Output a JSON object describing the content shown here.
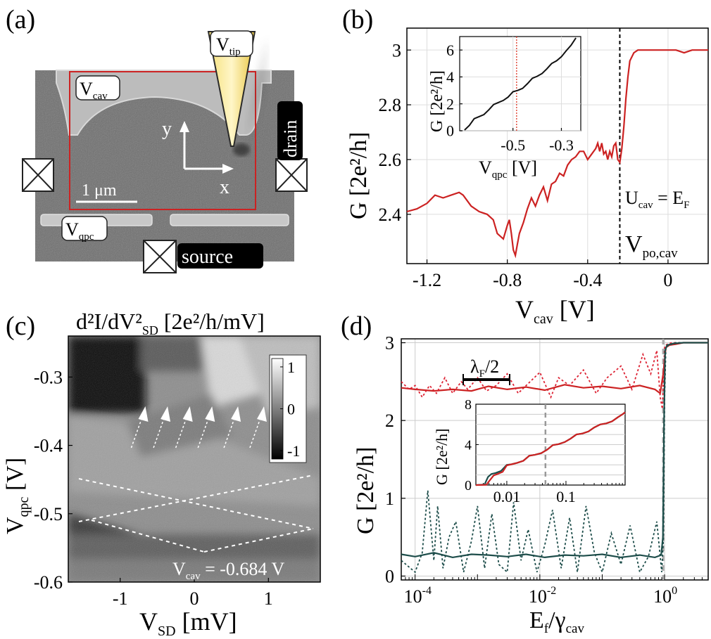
{
  "panels": {
    "a": {
      "label": "(a)",
      "gate_cav": "V",
      "gate_cav_sub": "cav",
      "gate_qpc": "V",
      "gate_qpc_sub": "qpc",
      "tip": "V",
      "tip_sub": "tip",
      "drain": "drain",
      "source": "source",
      "axis_x": "x",
      "axis_y": "y",
      "scale": "1 μm"
    },
    "c_extra": {
      "annotation_v": "V",
      "annotation_sub": "cav",
      "annotation_value": " = -0.684 V"
    },
    "b_extra": {
      "ucav": "U",
      "ucav_sub": "cav",
      "ucav_rhs": " = E",
      "ucav_rhs_sub": "F",
      "vpo": "V",
      "vpo_sub": "po,cav"
    },
    "d_extra": {
      "lambda": "λ",
      "lambda_sub": "F",
      "lambda_rest": "/2"
    }
  },
  "chart_data": [
    {
      "id": "b",
      "type": "line",
      "label": "(b)",
      "xlabel": "V",
      "xlabel_sub": "cav",
      "xlabel_unit": " [V]",
      "ylabel": "G [2e²/h]",
      "xlim": [
        -1.3,
        0.2
      ],
      "ylim": [
        2.22,
        3.08
      ],
      "xticks": [
        -1.2,
        -0.8,
        -0.4,
        0
      ],
      "xtick_labels": [
        "-1.2",
        "-0.8",
        "-0.4",
        "0"
      ],
      "yticks": [
        2.4,
        2.6,
        2.8,
        3.0
      ],
      "ytick_labels": [
        "2.4",
        "2.6",
        "2.8",
        "3"
      ],
      "grid": true,
      "marker_x": -0.24,
      "series": [
        {
          "color": "#cc2222",
          "x": [
            -1.3,
            -1.25,
            -1.2,
            -1.16,
            -1.12,
            -1.08,
            -1.04,
            -1.02,
            -0.98,
            -0.94,
            -0.9,
            -0.87,
            -0.85,
            -0.82,
            -0.8,
            -0.79,
            -0.78,
            -0.77,
            -0.76,
            -0.75,
            -0.74,
            -0.72,
            -0.7,
            -0.68,
            -0.66,
            -0.64,
            -0.62,
            -0.6,
            -0.58,
            -0.56,
            -0.54,
            -0.52,
            -0.5,
            -0.48,
            -0.46,
            -0.44,
            -0.42,
            -0.4,
            -0.38,
            -0.36,
            -0.35,
            -0.34,
            -0.33,
            -0.32,
            -0.31,
            -0.3,
            -0.29,
            -0.28,
            -0.27,
            -0.26,
            -0.25,
            -0.24,
            -0.23,
            -0.22,
            -0.21,
            -0.2,
            -0.19,
            -0.17,
            -0.15,
            -0.12,
            -0.08,
            -0.04,
            0,
            0.04,
            0.08,
            0.12,
            0.16,
            0.2
          ],
          "y": [
            2.41,
            2.42,
            2.44,
            2.47,
            2.46,
            2.47,
            2.48,
            2.47,
            2.43,
            2.41,
            2.4,
            2.38,
            2.33,
            2.31,
            2.36,
            2.38,
            2.33,
            2.27,
            2.25,
            2.29,
            2.33,
            2.37,
            2.42,
            2.46,
            2.43,
            2.47,
            2.5,
            2.45,
            2.51,
            2.52,
            2.55,
            2.54,
            2.58,
            2.6,
            2.61,
            2.63,
            2.63,
            2.6,
            2.62,
            2.64,
            2.66,
            2.63,
            2.66,
            2.62,
            2.63,
            2.6,
            2.63,
            2.61,
            2.65,
            2.66,
            2.6,
            2.59,
            2.64,
            2.72,
            2.82,
            2.9,
            2.96,
            2.99,
            3.0,
            3.0,
            3.0,
            3.0,
            3.0,
            3.0,
            2.99,
            3.0,
            3.0,
            3.0
          ]
        }
      ],
      "inset": {
        "xlabel": "V",
        "xlabel_sub": "qpc",
        "xlabel_unit": " [V]",
        "ylabel": "G [2e²/h]",
        "xlim": [
          -0.72,
          -0.22
        ],
        "ylim": [
          0,
          7
        ],
        "xticks": [
          -0.5,
          -0.3
        ],
        "xtick_labels": [
          "-0.5",
          "-0.3"
        ],
        "yticks": [
          0,
          2,
          4,
          6
        ],
        "ytick_labels": [
          "0",
          "2",
          "4",
          "6"
        ],
        "marker_x": -0.485,
        "series": [
          {
            "color": "#111111",
            "x": [
              -0.7,
              -0.68,
              -0.66,
              -0.64,
              -0.62,
              -0.6,
              -0.58,
              -0.56,
              -0.54,
              -0.52,
              -0.5,
              -0.48,
              -0.46,
              -0.44,
              -0.42,
              -0.4,
              -0.38,
              -0.36,
              -0.34,
              -0.32,
              -0.3,
              -0.28,
              -0.26,
              -0.24
            ],
            "y": [
              0.05,
              0.4,
              0.9,
              1.05,
              1.2,
              1.55,
              1.95,
              2.1,
              2.25,
              2.5,
              2.9,
              3.0,
              3.15,
              3.5,
              3.9,
              4.05,
              4.25,
              4.6,
              5.0,
              5.2,
              5.5,
              5.95,
              6.35,
              6.9
            ]
          }
        ]
      }
    },
    {
      "id": "c",
      "type": "heatmap",
      "label": "(c)",
      "title": "d²I/dV²",
      "title_sub": "SD",
      "title_unit": " [2e²/h/mV]",
      "xlabel": "V",
      "xlabel_sub": "SD",
      "xlabel_unit": " [mV]",
      "ylabel": "V",
      "ylabel_sub": "qpc",
      "ylabel_unit": " [V]",
      "xlim": [
        -1.7,
        1.7
      ],
      "ylim": [
        -0.6,
        -0.24
      ],
      "xticks": [
        -1,
        0,
        1
      ],
      "xtick_labels": [
        "-1",
        "0",
        "1"
      ],
      "yticks": [
        -0.3,
        -0.4,
        -0.5,
        -0.6
      ],
      "ytick_labels": [
        "-0.3",
        "-0.4",
        "-0.5",
        "-0.6"
      ],
      "colorbar": {
        "range": [
          -1.2,
          1.2
        ],
        "ticks": [
          1,
          0,
          -1
        ],
        "tick_labels": [
          "1",
          "0",
          "-1"
        ]
      },
      "arrows_x": [
        -0.85,
        -0.55,
        -0.25,
        0.05,
        0.4,
        0.75
      ]
    },
    {
      "id": "d",
      "type": "line",
      "label": "(d)",
      "xlabel": "E",
      "xlabel_sub1": "f",
      "xlabel_mid": "/γ",
      "xlabel_sub2": "cav",
      "ylabel": "G [2e²/h]",
      "xscale": "log",
      "xlim": [
        6e-05,
        5
      ],
      "ylim": [
        -0.05,
        3.05
      ],
      "xticks": [
        0.0001,
        0.01,
        1
      ],
      "xtick_base": [
        "10",
        "10",
        "10"
      ],
      "xtick_exp": [
        "-4",
        "-2",
        "0"
      ],
      "yticks": [
        0,
        1,
        2,
        3
      ],
      "ytick_labels": [
        "0",
        "1",
        "2",
        "3"
      ],
      "grid": true,
      "marker_x": 0.95,
      "series": [
        {
          "style": "solid",
          "color": "#cc2222",
          "x": [
            6e-05,
            0.0001,
            0.0002,
            0.0004,
            0.0008,
            0.0015,
            0.003,
            0.006,
            0.012,
            0.025,
            0.05,
            0.1,
            0.2,
            0.4,
            0.7,
            0.85,
            0.95,
            1.05,
            1.2,
            1.5,
            2,
            3,
            5
          ],
          "y": [
            2.42,
            2.4,
            2.38,
            2.4,
            2.38,
            2.44,
            2.4,
            2.43,
            2.39,
            2.46,
            2.42,
            2.44,
            2.41,
            2.45,
            2.4,
            2.35,
            2.6,
            2.94,
            2.97,
            2.98,
            3.0,
            3.0,
            3.0
          ]
        },
        {
          "style": "dotted",
          "color": "#dd2233",
          "x": [
            6e-05,
            8e-05,
            0.0001,
            0.00013,
            0.00017,
            0.00022,
            0.0003,
            0.0004,
            0.00055,
            0.0007,
            0.001,
            0.0014,
            0.002,
            0.003,
            0.0045,
            0.007,
            0.01,
            0.015,
            0.02,
            0.03,
            0.05,
            0.08,
            0.12,
            0.2,
            0.3,
            0.45,
            0.6,
            0.75,
            0.85,
            0.92,
            1.0,
            1.1,
            1.3,
            2,
            5
          ],
          "y": [
            2.5,
            2.4,
            2.45,
            2.3,
            2.45,
            2.35,
            2.55,
            2.35,
            2.5,
            2.4,
            2.55,
            2.38,
            2.45,
            2.6,
            2.35,
            2.5,
            2.62,
            2.3,
            2.55,
            2.45,
            2.65,
            2.35,
            2.55,
            2.7,
            2.4,
            2.85,
            2.6,
            2.9,
            2.3,
            2.15,
            2.95,
            2.98,
            3.0,
            3.0,
            3.0
          ]
        },
        {
          "style": "solid",
          "color": "#1d4d4a",
          "x": [
            6e-05,
            0.0001,
            0.0002,
            0.0004,
            0.0008,
            0.0015,
            0.003,
            0.006,
            0.012,
            0.025,
            0.05,
            0.1,
            0.2,
            0.4,
            0.7,
            0.88,
            0.94,
            0.98,
            1.02,
            1.1,
            1.4,
            2,
            5
          ],
          "y": [
            0.28,
            0.25,
            0.3,
            0.24,
            0.28,
            0.27,
            0.25,
            0.28,
            0.24,
            0.27,
            0.26,
            0.28,
            0.24,
            0.27,
            0.24,
            0.27,
            0.5,
            2.0,
            2.9,
            2.97,
            2.99,
            3.0,
            3.0
          ]
        },
        {
          "style": "dotted",
          "color": "#1d4d4a",
          "x": [
            6e-05,
            0.0001,
            0.00013,
            0.00016,
            0.0002,
            0.00023,
            0.00028,
            0.00035,
            0.00045,
            0.0006,
            0.0008,
            0.001,
            0.0013,
            0.0017,
            0.0022,
            0.003,
            0.0038,
            0.005,
            0.0065,
            0.009,
            0.012,
            0.016,
            0.022,
            0.03,
            0.04,
            0.055,
            0.075,
            0.1,
            0.14,
            0.2,
            0.28,
            0.4,
            0.55,
            0.75,
            0.9,
            0.96,
            1.0,
            1.05,
            1.5,
            5
          ],
          "y": [
            0.2,
            0.05,
            0.3,
            1.1,
            0.2,
            0.9,
            0.1,
            0.5,
            0.7,
            0.05,
            0.45,
            0.9,
            0.1,
            0.8,
            0.15,
            0.05,
            0.95,
            0.2,
            0.6,
            0.05,
            0.4,
            0.85,
            0.1,
            0.75,
            0.05,
            0.9,
            0.3,
            0.05,
            0.55,
            0.15,
            0.65,
            0.05,
            0.25,
            0.7,
            0.05,
            0.5,
            2.3,
            2.95,
            3.0,
            3.0
          ]
        }
      ],
      "inset": {
        "ylabel": "G [2e²/h]",
        "xscale": "log",
        "xlim": [
          0.003,
          1
        ],
        "ylim": [
          0,
          8
        ],
        "xticks": [
          0.01,
          0.1
        ],
        "xtick_labels": [
          "0.01",
          "0.1"
        ],
        "yticks": [
          0,
          4,
          8
        ],
        "ytick_labels": [
          "0",
          "4",
          "8"
        ],
        "marker_x": 0.045,
        "series": [
          {
            "color": "#1d4d4a",
            "x": [
              0.003,
              0.0042,
              0.0048,
              0.0055,
              0.0065,
              0.008,
              0.01,
              0.012,
              0.015,
              0.019,
              0.024,
              0.03,
              0.038,
              0.048,
              0.06,
              0.075,
              0.095,
              0.12,
              0.15,
              0.19,
              0.24,
              0.3,
              0.38,
              0.48,
              0.6,
              0.75,
              0.9,
              1.0
            ],
            "y": [
              0,
              0.05,
              0.8,
              1.1,
              1.2,
              1.4,
              2.0,
              2.05,
              2.2,
              2.4,
              2.9,
              3.0,
              3.15,
              3.5,
              3.95,
              4.05,
              4.25,
              4.6,
              5.0,
              5.1,
              5.3,
              5.7,
              6.0,
              6.1,
              6.3,
              6.7,
              7.0,
              7.2
            ]
          },
          {
            "color": "#cc2222",
            "x": [
              0.003,
              0.0045,
              0.0052,
              0.006,
              0.007,
              0.0085,
              0.01,
              0.012,
              0.015,
              0.019,
              0.024,
              0.03,
              0.038,
              0.048,
              0.06,
              0.075,
              0.095,
              0.12,
              0.15,
              0.19,
              0.24,
              0.3,
              0.38,
              0.48,
              0.6,
              0.75,
              0.9,
              1.0
            ],
            "y": [
              0,
              0.02,
              0.5,
              0.95,
              1.1,
              1.3,
              1.95,
              2.05,
              2.2,
              2.4,
              2.9,
              3.0,
              3.15,
              3.5,
              3.95,
              4.05,
              4.25,
              4.6,
              5.0,
              5.1,
              5.3,
              5.7,
              6.0,
              6.1,
              6.3,
              6.7,
              7.0,
              7.2
            ]
          }
        ]
      }
    }
  ]
}
